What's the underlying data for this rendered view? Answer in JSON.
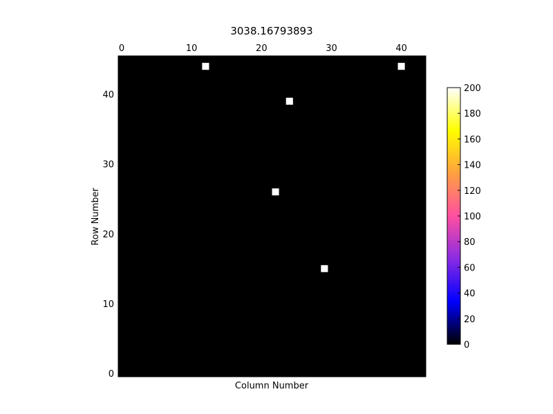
{
  "chart_data": {
    "type": "heatmap",
    "title": "3038.16793893",
    "xlabel": "Column Number",
    "ylabel": "Row Number",
    "xlim": [
      0,
      44
    ],
    "ylim": [
      0,
      46
    ],
    "x_ticks": [
      0,
      10,
      20,
      30,
      40
    ],
    "y_ticks": [
      0,
      10,
      20,
      30,
      40
    ],
    "x_tick_position": "top",
    "background_value": 0,
    "points": [
      {
        "x": 12,
        "y": 44,
        "value": 200
      },
      {
        "x": 40,
        "y": 44,
        "value": 200
      },
      {
        "x": 24,
        "y": 39,
        "value": 200
      },
      {
        "x": 22,
        "y": 26,
        "value": 200
      },
      {
        "x": 29,
        "y": 15,
        "value": 200
      }
    ],
    "colorbar": {
      "min": 0,
      "max": 200,
      "ticks": [
        0,
        20,
        40,
        60,
        80,
        100,
        120,
        140,
        160,
        180,
        200
      ],
      "colormap": "gnuplot2",
      "colors": [
        "#000000",
        "#0000ff",
        "#8a2be2",
        "#ff4fa0",
        "#ffa040",
        "#ffff00",
        "#ffffff"
      ]
    },
    "grid": false
  }
}
